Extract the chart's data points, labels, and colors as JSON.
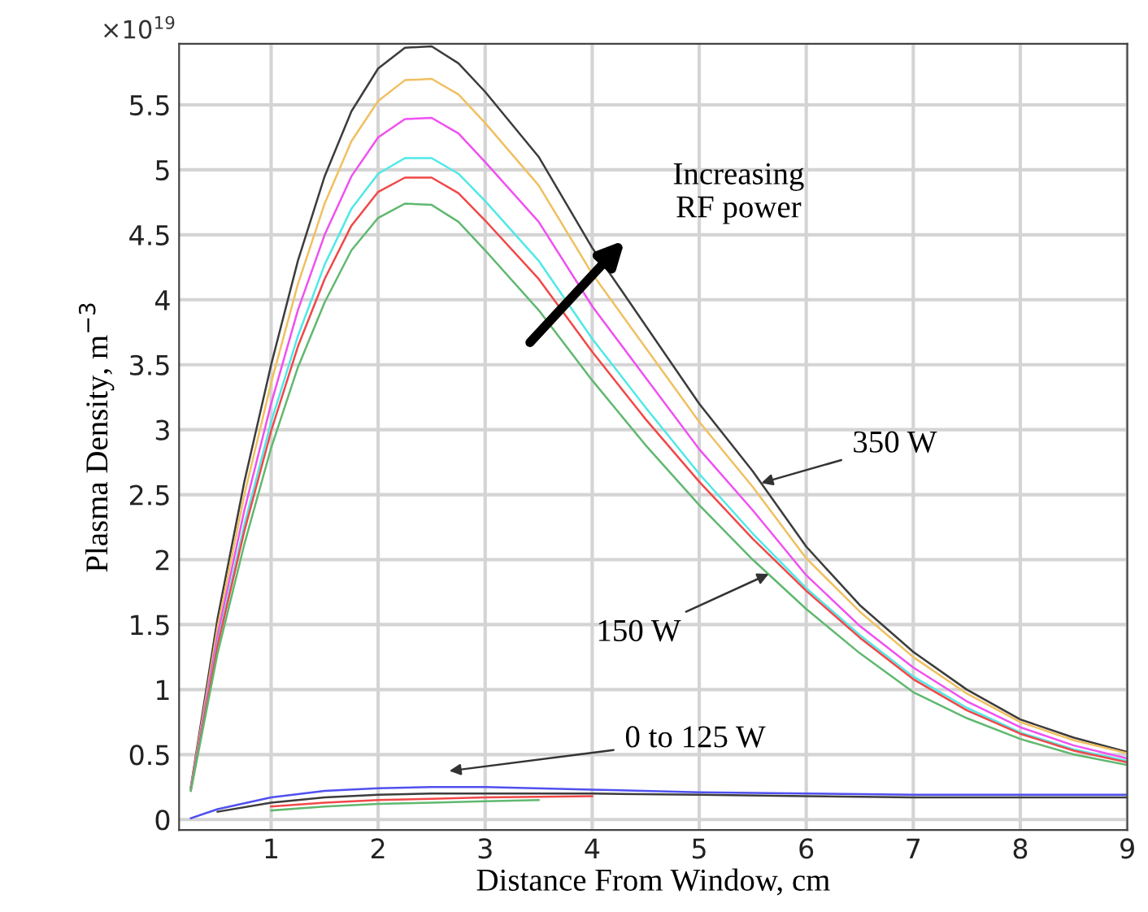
{
  "chart_data": {
    "type": "line",
    "xlabel": "Distance From Window, cm",
    "ylabel": "Plasma Density, m$^{−3}$",
    "annotations": [
      "×10$^{19}$",
      "Increasing\nRF power",
      {
        "text": "350 W",
        "x": 5.58,
        "y": 2.59
      },
      {
        "text": "150 W",
        "x": 5.65,
        "y": 1.89
      },
      "0 to 125 W"
    ],
    "xlim": [
      0.14,
      9
    ],
    "ylim": [
      -0.08,
      5.97
    ],
    "xticks": [
      1,
      2,
      3,
      4,
      5,
      6,
      7,
      8,
      9
    ],
    "yticks": [
      0,
      0.5,
      1,
      1.5,
      2,
      2.5,
      3,
      3.5,
      4,
      4.5,
      5,
      5.5
    ],
    "grid": true,
    "line_style": "solid",
    "marker": "none",
    "series": [
      {
        "color": "#3c3c3c",
        "x": [
          0.25,
          0.5,
          0.75,
          1,
          1.25,
          1.5,
          1.75,
          2,
          2.25,
          2.5,
          2.75,
          3,
          3.5,
          4,
          4.5,
          5,
          5.5,
          6,
          6.5,
          7,
          7.5,
          8,
          8.5,
          9
        ],
        "values": [
          0.25,
          1.55,
          2.6,
          3.5,
          4.3,
          4.95,
          5.45,
          5.78,
          5.94,
          5.95,
          5.82,
          5.6,
          5.1,
          4.4,
          3.8,
          3.2,
          2.68,
          2.1,
          1.65,
          1.29,
          1.0,
          0.77,
          0.63,
          0.52
        ]
      },
      {
        "color": "#f0c060",
        "x": [
          0.25,
          0.5,
          0.75,
          1,
          1.25,
          1.5,
          1.75,
          2,
          2.25,
          2.5,
          2.75,
          3,
          3.5,
          4,
          4.5,
          5,
          5.5,
          6,
          6.5,
          7,
          7.5,
          8,
          8.5,
          9
        ],
        "values": [
          0.24,
          1.48,
          2.5,
          3.36,
          4.12,
          4.74,
          5.22,
          5.53,
          5.69,
          5.7,
          5.58,
          5.36,
          4.88,
          4.2,
          3.63,
          3.06,
          2.56,
          2.01,
          1.6,
          1.25,
          0.97,
          0.75,
          0.61,
          0.51
        ]
      },
      {
        "color": "#f050f0",
        "x": [
          0.25,
          0.5,
          0.75,
          1,
          1.25,
          1.5,
          1.75,
          2,
          2.25,
          2.5,
          2.75,
          3,
          3.5,
          4,
          4.5,
          5,
          5.5,
          6,
          6.5,
          7,
          7.5,
          8,
          8.5,
          9
        ],
        "values": [
          0.24,
          1.42,
          2.38,
          3.2,
          3.92,
          4.5,
          4.95,
          5.25,
          5.39,
          5.4,
          5.28,
          5.06,
          4.6,
          3.95,
          3.4,
          2.85,
          2.38,
          1.88,
          1.49,
          1.17,
          0.91,
          0.71,
          0.57,
          0.47
        ]
      },
      {
        "color": "#50e8e8",
        "x": [
          0.25,
          0.5,
          0.75,
          1,
          1.25,
          1.5,
          1.75,
          2,
          2.25,
          2.5,
          2.75,
          3,
          3.5,
          4,
          4.5,
          5,
          5.5,
          6,
          6.5,
          7,
          7.5,
          8,
          8.5,
          9
        ],
        "values": [
          0.23,
          1.36,
          2.27,
          3.06,
          3.72,
          4.27,
          4.7,
          4.97,
          5.09,
          5.09,
          4.97,
          4.76,
          4.3,
          3.7,
          3.17,
          2.66,
          2.2,
          1.78,
          1.42,
          1.1,
          0.86,
          0.67,
          0.54,
          0.45
        ]
      },
      {
        "color": "#f04848",
        "x": [
          0.25,
          0.5,
          0.75,
          1,
          1.25,
          1.5,
          1.75,
          2,
          2.25,
          2.5,
          2.75,
          3,
          3.5,
          4,
          4.5,
          5,
          5.5,
          6,
          6.5,
          7,
          7.5,
          8,
          8.5,
          9
        ],
        "values": [
          0.23,
          1.34,
          2.22,
          2.99,
          3.64,
          4.16,
          4.57,
          4.83,
          4.94,
          4.94,
          4.82,
          4.61,
          4.16,
          3.6,
          3.08,
          2.6,
          2.16,
          1.76,
          1.4,
          1.08,
          0.84,
          0.66,
          0.53,
          0.44
        ]
      },
      {
        "color": "#60b870",
        "x": [
          0.25,
          0.5,
          0.75,
          1,
          1.25,
          1.5,
          1.75,
          2,
          2.25,
          2.5,
          2.75,
          3,
          3.5,
          4,
          4.5,
          5,
          5.5,
          6,
          6.5,
          7,
          7.5,
          8,
          8.5,
          9
        ],
        "values": [
          0.22,
          1.28,
          2.12,
          2.86,
          3.48,
          3.98,
          4.38,
          4.63,
          4.74,
          4.73,
          4.6,
          4.38,
          3.92,
          3.38,
          2.88,
          2.42,
          2.0,
          1.62,
          1.28,
          0.98,
          0.78,
          0.62,
          0.5,
          0.42
        ]
      },
      {
        "color": "#5050f0",
        "x": [
          0.25,
          0.5,
          1,
          1.5,
          2,
          2.5,
          3,
          4,
          5,
          6,
          7,
          8,
          9
        ],
        "values": [
          0.01,
          0.08,
          0.17,
          0.22,
          0.24,
          0.25,
          0.25,
          0.23,
          0.21,
          0.2,
          0.19,
          0.19,
          0.19
        ]
      },
      {
        "color": "#3c3c3c",
        "x": [
          0.5,
          1,
          1.5,
          2,
          2.5,
          3,
          4,
          5,
          6,
          7,
          8,
          9
        ],
        "values": [
          0.06,
          0.13,
          0.17,
          0.19,
          0.2,
          0.2,
          0.2,
          0.19,
          0.18,
          0.17,
          0.17,
          0.17
        ]
      },
      {
        "color": "#f04848",
        "x": [
          1,
          1.5,
          2,
          2.5,
          3,
          4
        ],
        "values": [
          0.1,
          0.13,
          0.15,
          0.16,
          0.17,
          0.18
        ]
      },
      {
        "color": "#60b870",
        "x": [
          1,
          1.5,
          2,
          2.5,
          3,
          3.5
        ],
        "values": [
          0.07,
          0.1,
          0.12,
          0.13,
          0.14,
          0.15
        ]
      }
    ]
  }
}
